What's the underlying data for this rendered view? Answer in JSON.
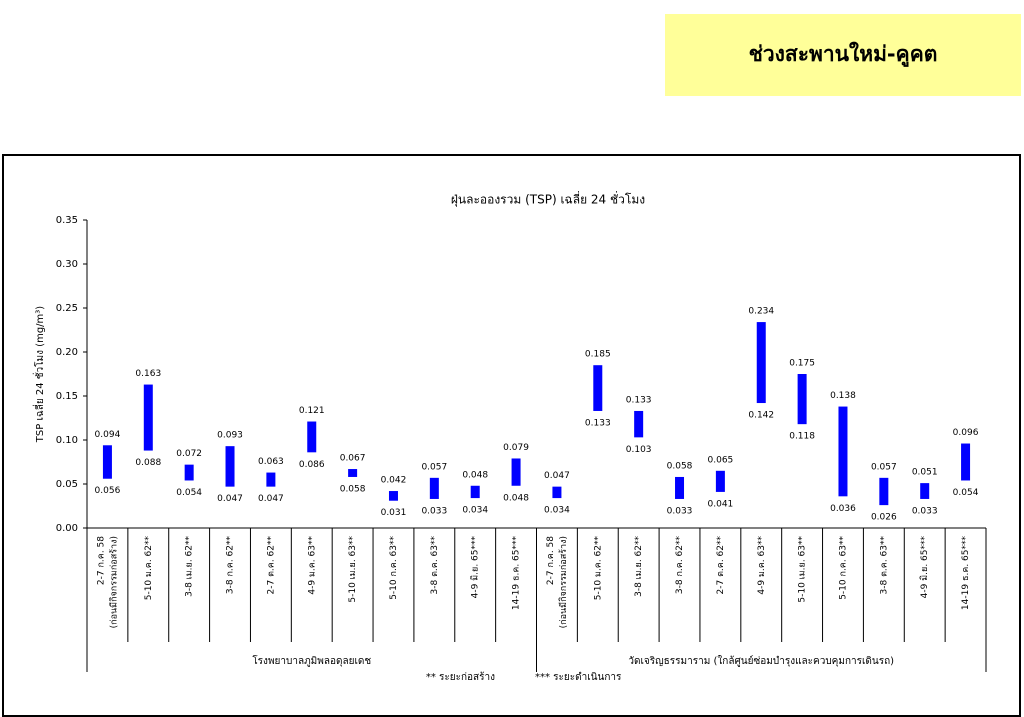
{
  "header": "ช่วงสะพานใหม่-คูคต",
  "footnotes": [
    "** ระยะก่อสร้าง",
    "*** ระยะดำเนินการ"
  ],
  "chart_data": {
    "type": "range-bar",
    "title": "ฝุ่นละอองรวม (TSP) เฉลี่ย 24 ชั่วโมง",
    "y_label": "TSP เฉลี่ย 24 ชั่วโมง (mg/m³)",
    "color": "#0000ff",
    "ylim": [
      0,
      0.35
    ],
    "yticks": [
      {
        "value": 0,
        "label": "0.00"
      },
      {
        "value": 0.05,
        "label": "0.05"
      },
      {
        "value": 0.1,
        "label": "0.10"
      },
      {
        "value": 0.15,
        "label": "0.15"
      },
      {
        "value": 0.2,
        "label": "0.20"
      },
      {
        "value": 0.25,
        "label": "0.25"
      },
      {
        "value": 0.3,
        "label": "0.30"
      },
      {
        "value": 0.35,
        "label": "0.35"
      }
    ],
    "groups": [
      {
        "label": "โรงพยาบาลภูมิพลอดุลยเดช",
        "categories": [
          [
            "2-7 ก.ค. 58",
            "(ก่อนมีกิจกรรมก่อสร้าง)"
          ],
          [
            "5-10 ม.ค. 62**"
          ],
          [
            "3-8 เม.ย. 62**"
          ],
          [
            "3-8 ก.ค. 62**"
          ],
          [
            "2-7 ต.ค. 62**"
          ],
          [
            "4-9 ม.ค. 63**"
          ],
          [
            "5-10 เม.ย. 63**"
          ],
          [
            "5-10 ก.ค. 63**"
          ],
          [
            "3-8 ต.ค. 63**"
          ],
          [
            "4-9 มิ.ย. 65***"
          ],
          [
            "14-19 ธ.ค. 65***"
          ]
        ],
        "max": [
          0.094,
          0.163,
          0.072,
          0.093,
          0.063,
          0.121,
          0.067,
          0.042,
          0.057,
          0.048,
          0.079
        ],
        "min": [
          0.056,
          0.088,
          0.054,
          0.047,
          0.047,
          0.086,
          0.058,
          0.031,
          0.033,
          0.034,
          0.048
        ]
      },
      {
        "label": "วัดเจริญธรรมาราม (ใกล้ศูนย์ซ่อมบำรุงและควบคุมการเดินรถ)",
        "categories": [
          [
            "2-7 ก.ค. 58",
            "(ก่อนมีกิจกรรมก่อสร้าง)"
          ],
          [
            "5-10 ม.ค. 62**"
          ],
          [
            "3-8 เม.ย. 62**"
          ],
          [
            "3-8 ก.ค. 62**"
          ],
          [
            "2-7 ต.ค. 62**"
          ],
          [
            "4-9 ม.ค. 63**"
          ],
          [
            "5-10 เม.ย. 63**"
          ],
          [
            "5-10 ก.ค. 63**"
          ],
          [
            "3-8 ต.ค. 63**"
          ],
          [
            "4-9 มิ.ย. 65***"
          ],
          [
            "14-19 ธ.ค. 65***"
          ]
        ],
        "max": [
          0.047,
          0.185,
          0.133,
          0.058,
          0.065,
          0.234,
          0.175,
          0.138,
          0.057,
          0.051,
          0.096
        ],
        "min": [
          0.034,
          0.133,
          0.103,
          0.033,
          0.041,
          0.142,
          0.118,
          0.036,
          0.026,
          0.033,
          0.054
        ]
      }
    ]
  }
}
